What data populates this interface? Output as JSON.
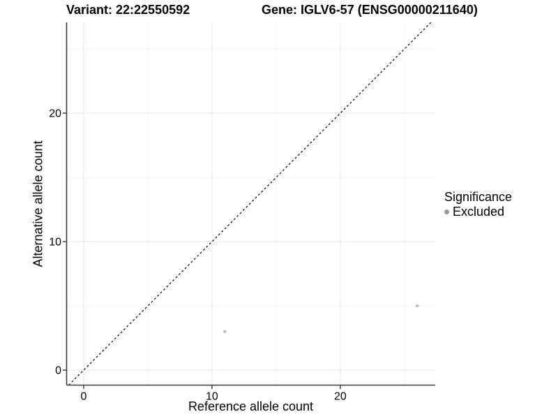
{
  "titles": {
    "variant": "Variant: 22:22550592",
    "gene": "Gene: IGLV6-57 (ENSG00000211640)"
  },
  "chart_data": {
    "type": "scatter",
    "xlabel": "Reference allele count",
    "ylabel": "Alternative allele count",
    "xlim": [
      -1.33,
      27.4
    ],
    "ylim": [
      -1.17,
      27.07
    ],
    "x_major_ticks": [
      0,
      10,
      20
    ],
    "y_major_ticks": [
      0,
      10,
      20
    ],
    "x_minor_ticks": [
      5,
      15,
      25
    ],
    "y_minor_ticks": [
      5,
      15,
      25
    ],
    "grid": true,
    "series": [
      {
        "name": "Excluded",
        "point_color": "#bebebe",
        "points": [
          {
            "x": 11,
            "y": 3
          },
          {
            "x": 26,
            "y": 5
          }
        ]
      }
    ],
    "reference_line": {
      "kind": "identity",
      "style": "dashed",
      "color": "#000000"
    },
    "legend": {
      "position": "right",
      "title": "Significance",
      "items": [
        {
          "label": "Excluded",
          "color": "#999999"
        }
      ]
    }
  },
  "colors": {
    "background": "#ffffff",
    "major_grid": "#e9e9e9",
    "minor_grid": "#f3f3f3",
    "axis_line": "#3c3c3c",
    "tick_mark": "#343434",
    "text": "#000000"
  }
}
